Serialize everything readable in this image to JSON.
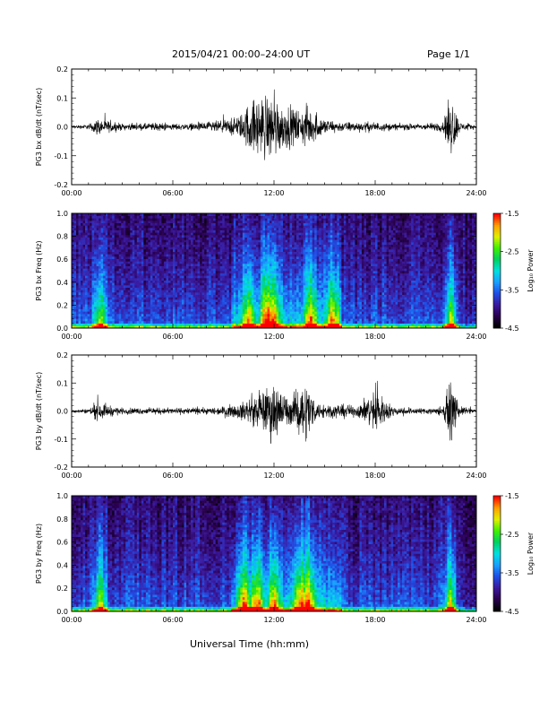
{
  "header": {
    "title": "2015/04/21  00:00–24:00 UT",
    "page": "Page 1/1"
  },
  "x_axis": {
    "label": "Universal Time (hh:mm)",
    "ticks": [
      "00:00",
      "06:00",
      "12:00",
      "18:00",
      "24:00"
    ],
    "range_hours": [
      0,
      24
    ]
  },
  "colorbar": {
    "ticks": [
      "-1.5",
      "-2.5",
      "-3.5",
      "-4.5"
    ],
    "label": "Log₁₀ Power",
    "range": [
      -4.5,
      -1.5
    ]
  },
  "colors": {
    "trace": "#000000",
    "palette": [
      "#000000",
      "#2a0050",
      "#3b1aa0",
      "#1f4fe6",
      "#1aa0ff",
      "#00e0e0",
      "#00d060",
      "#40f000",
      "#e0f000",
      "#ffa000",
      "#ff0000"
    ]
  },
  "chart_data": [
    {
      "type": "line",
      "ylabel": "PG3 bx dB/dt (nT/sec)",
      "yticks": [
        "0.2",
        "0.1",
        "0.0",
        "-0.1",
        "-0.2"
      ],
      "ylim": [
        -0.2,
        0.2
      ],
      "envelope_x_hours": [
        0,
        1,
        1.5,
        2,
        2.5,
        3,
        4,
        5,
        6,
        7,
        8,
        9,
        10,
        10.5,
        11,
        11.5,
        12,
        12.5,
        13,
        13.5,
        14,
        14.5,
        15,
        16,
        17,
        18,
        19,
        20,
        21,
        22,
        22.5,
        23,
        24
      ],
      "envelope_y": [
        0.01,
        0.015,
        0.05,
        0.04,
        0.03,
        0.02,
        0.02,
        0.025,
        0.02,
        0.02,
        0.03,
        0.04,
        0.07,
        0.15,
        0.18,
        0.2,
        0.2,
        0.14,
        0.12,
        0.1,
        0.13,
        0.08,
        0.05,
        0.03,
        0.03,
        0.03,
        0.02,
        0.02,
        0.02,
        0.03,
        0.2,
        0.03,
        0.01
      ]
    },
    {
      "type": "heatmap",
      "ylabel": "PG3 bx Freq (Hz)",
      "yticks": [
        "1.0",
        "0.8",
        "0.6",
        "0.4",
        "0.2",
        "0.0"
      ],
      "ylim": [
        0,
        1.0
      ],
      "zlim": [
        -4.5,
        -1.5
      ],
      "bright_bands_hours": [
        1.7,
        10.5,
        11.5,
        12,
        14.2,
        15.5,
        22.5
      ]
    },
    {
      "type": "line",
      "ylabel": "PG3 by dB/dt (nT/sec)",
      "yticks": [
        "0.2",
        "0.1",
        "0.0",
        "-0.1",
        "-0.2"
      ],
      "ylim": [
        -0.2,
        0.2
      ],
      "envelope_x_hours": [
        0,
        1,
        1.5,
        2,
        2.5,
        3,
        4,
        5,
        6,
        7,
        8,
        9,
        10,
        10.5,
        11,
        11.5,
        12,
        12.5,
        13,
        13.5,
        14,
        14.5,
        15,
        16,
        17,
        18,
        19,
        20,
        21,
        22,
        22.5,
        23,
        24
      ],
      "envelope_y": [
        0.01,
        0.015,
        0.06,
        0.04,
        0.03,
        0.02,
        0.02,
        0.02,
        0.02,
        0.02,
        0.02,
        0.03,
        0.05,
        0.08,
        0.11,
        0.14,
        0.2,
        0.12,
        0.08,
        0.16,
        0.19,
        0.05,
        0.05,
        0.04,
        0.04,
        0.14,
        0.03,
        0.02,
        0.02,
        0.03,
        0.19,
        0.03,
        0.01
      ]
    },
    {
      "type": "heatmap",
      "ylabel": "PG3 by Freq (Hz)",
      "yticks": [
        "1.0",
        "0.8",
        "0.6",
        "0.4",
        "0.2",
        "0.0"
      ],
      "ylim": [
        0,
        1.0
      ],
      "zlim": [
        -4.5,
        -1.5
      ],
      "bright_bands_hours": [
        1.7,
        10.2,
        11,
        12,
        13.5,
        14.1,
        22.5
      ]
    }
  ]
}
